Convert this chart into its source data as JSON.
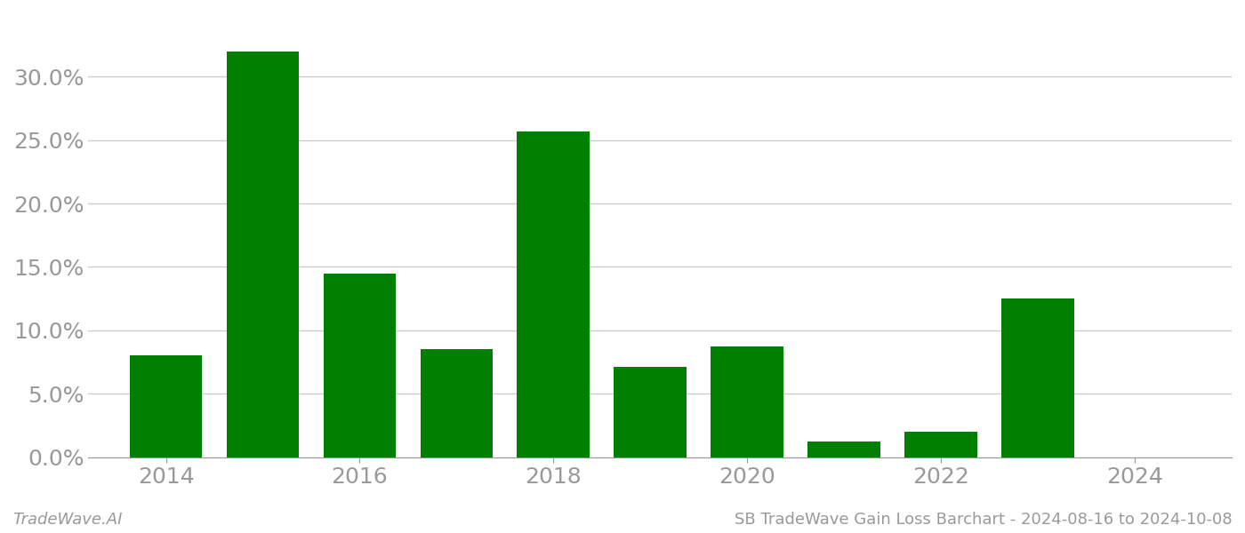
{
  "years": [
    2014,
    2015,
    2016,
    2017,
    2018,
    2019,
    2020,
    2021,
    2022,
    2023,
    2024
  ],
  "values": [
    0.08,
    0.32,
    0.145,
    0.085,
    0.257,
    0.071,
    0.087,
    0.012,
    0.02,
    0.125,
    0.0
  ],
  "bar_color": "#008000",
  "background_color": "#ffffff",
  "grid_color": "#cccccc",
  "axis_color": "#999999",
  "tick_color": "#999999",
  "footer_left": "TradeWave.AI",
  "footer_right": "SB TradeWave Gain Loss Barchart - 2024-08-16 to 2024-10-08",
  "ylim": [
    0,
    0.35
  ],
  "yticks": [
    0.0,
    0.05,
    0.1,
    0.15,
    0.2,
    0.25,
    0.3
  ],
  "xticks": [
    2014,
    2016,
    2018,
    2020,
    2022,
    2024
  ],
  "bar_width": 0.75,
  "tick_fontsize": 18,
  "footer_fontsize": 13
}
